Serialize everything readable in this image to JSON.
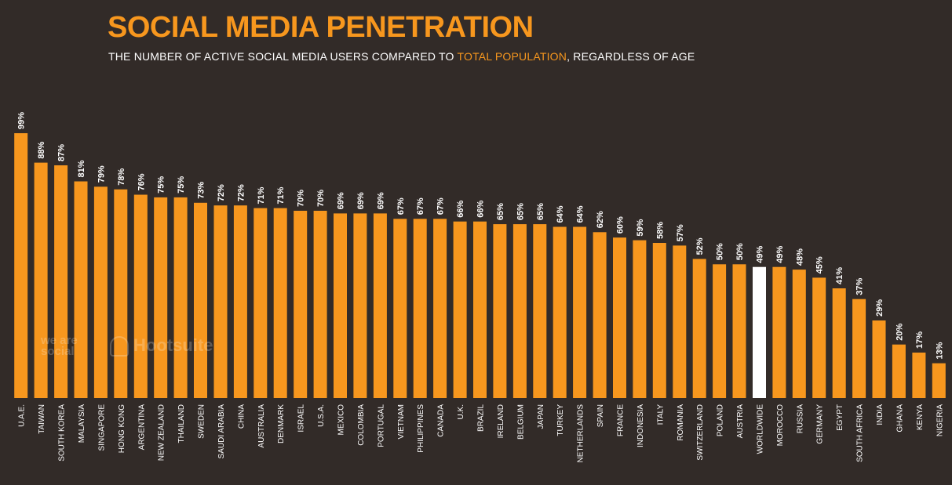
{
  "header": {
    "title": "SOCIAL MEDIA PENETRATION",
    "subtitle_before": "THE NUMBER OF ACTIVE SOCIAL MEDIA USERS COMPARED TO ",
    "subtitle_highlight": "TOTAL POPULATION",
    "subtitle_after": ", REGARDLESS OF AGE"
  },
  "watermark": {
    "we_are_social": "we are social",
    "hootsuite": "Hootsuite"
  },
  "colors": {
    "background": "#322b28",
    "bar": "#f7971e",
    "highlight_bar": "#ffffff",
    "text": "#ffffff",
    "accent": "#f7971e"
  },
  "chart_data": {
    "type": "bar",
    "title": "SOCIAL MEDIA PENETRATION",
    "xlabel": "",
    "ylabel": "",
    "ylim": [
      0,
      100
    ],
    "value_suffix": "%",
    "highlight_category": "WORLDWIDE",
    "categories": [
      "U.A.E.",
      "TAIWAN",
      "SOUTH KOREA",
      "MALAYSIA",
      "SINGAPORE",
      "HONG KONG",
      "ARGENTINA",
      "NEW ZEALAND",
      "THAILAND",
      "SWEDEN",
      "SAUDI ARABIA",
      "CHINA",
      "AUSTRALIA",
      "DENMARK",
      "ISRAEL",
      "U.S.A.",
      "MEXICO",
      "COLOMBIA",
      "PORTUGAL",
      "VIETNAM",
      "PHILIPPINES",
      "CANADA",
      "U.K.",
      "BRAZIL",
      "IRELAND",
      "BELGIUM",
      "JAPAN",
      "TURKEY",
      "NETHERLANDS",
      "SPAIN",
      "FRANCE",
      "INDONESIA",
      "ITALY",
      "ROMANIA",
      "SWITZERLAND",
      "POLAND",
      "AUSTRIA",
      "WORLDWIDE",
      "MOROCCO",
      "RUSSIA",
      "GERMANY",
      "EGYPT",
      "SOUTH AFRICA",
      "INDIA",
      "GHANA",
      "KENYA",
      "NIGERIA"
    ],
    "values": [
      99,
      88,
      87,
      81,
      79,
      78,
      76,
      75,
      75,
      73,
      72,
      72,
      71,
      71,
      70,
      70,
      69,
      69,
      69,
      67,
      67,
      67,
      66,
      66,
      65,
      65,
      65,
      64,
      64,
      62,
      60,
      59,
      58,
      57,
      52,
      50,
      50,
      49,
      49,
      48,
      45,
      41,
      37,
      29,
      20,
      17,
      13
    ]
  }
}
